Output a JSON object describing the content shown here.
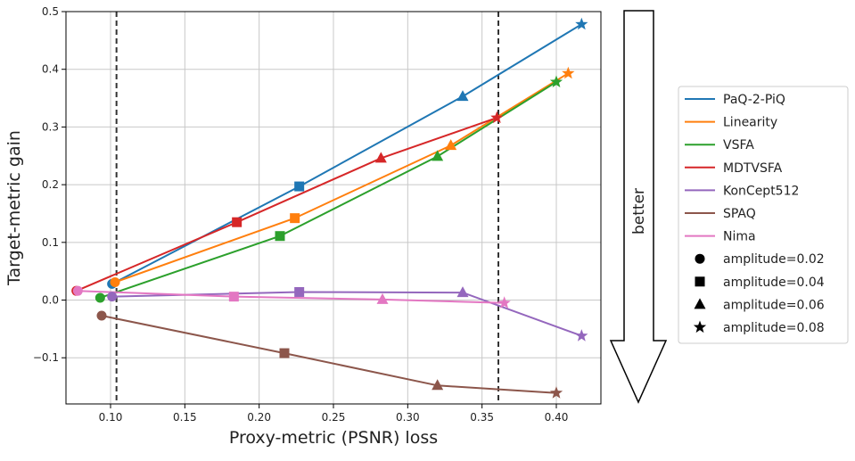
{
  "chart_data": {
    "type": "line",
    "title": "",
    "xlabel": "Proxy-metric (PSNR) loss",
    "ylabel": "Target-metric gain",
    "xlim": [
      0.07,
      0.43
    ],
    "ylim": [
      -0.18,
      0.5
    ],
    "xticks": [
      0.1,
      0.15,
      0.2,
      0.25,
      0.3,
      0.35,
      0.4
    ],
    "xtick_labels": [
      "0.10",
      "0.15",
      "0.20",
      "0.25",
      "0.30",
      "0.35",
      "0.40"
    ],
    "yticks": [
      -0.1,
      0.0,
      0.1,
      0.2,
      0.3,
      0.4,
      0.5
    ],
    "ytick_labels": [
      "−0.1",
      "0.0",
      "0.1",
      "0.2",
      "0.3",
      "0.4",
      "0.5"
    ],
    "grid": true,
    "vlines": [
      0.104,
      0.361
    ],
    "markers_by_amplitude": [
      "circle",
      "square",
      "triangle",
      "star"
    ],
    "series": [
      {
        "name": "PaQ-2-PiQ",
        "color": "#1f77b4",
        "x": [
          0.101,
          0.227,
          0.337,
          0.417
        ],
        "y": [
          0.028,
          0.197,
          0.353,
          0.478
        ]
      },
      {
        "name": "Linearity",
        "color": "#ff7f0e",
        "x": [
          0.103,
          0.224,
          0.329,
          0.408
        ],
        "y": [
          0.031,
          0.142,
          0.268,
          0.393
        ]
      },
      {
        "name": "VSFA",
        "color": "#2ca02c",
        "x": [
          0.093,
          0.214,
          0.32,
          0.4
        ],
        "y": [
          0.004,
          0.111,
          0.249,
          0.378
        ]
      },
      {
        "name": "MDTVSFA",
        "color": "#d62728",
        "x": [
          0.077,
          0.185,
          0.282,
          0.36
        ],
        "y": [
          0.016,
          0.135,
          0.246,
          0.316
        ]
      },
      {
        "name": "KonCept512",
        "color": "#9467bd",
        "x": [
          0.101,
          0.227,
          0.337,
          0.417
        ],
        "y": [
          0.006,
          0.014,
          0.013,
          -0.062
        ]
      },
      {
        "name": "SPAQ",
        "color": "#8c564b",
        "x": [
          0.094,
          0.217,
          0.32,
          0.4
        ],
        "y": [
          -0.027,
          -0.092,
          -0.148,
          -0.161
        ]
      },
      {
        "name": "Nima",
        "color": "#e377c2",
        "x": [
          0.078,
          0.183,
          0.283,
          0.365
        ],
        "y": [
          0.016,
          0.006,
          0.001,
          -0.005
        ]
      }
    ],
    "legend": {
      "placement": "right",
      "entries": [
        "PaQ-2-PiQ",
        "Linearity",
        "VSFA",
        "MDTVSFA",
        "KonCept512",
        "SPAQ",
        "Nima"
      ],
      "marker_entries": [
        "amplitude=0.02",
        "amplitude=0.04",
        "amplitude=0.06",
        "amplitude=0.08"
      ]
    },
    "annotation": {
      "text": "better"
    }
  }
}
